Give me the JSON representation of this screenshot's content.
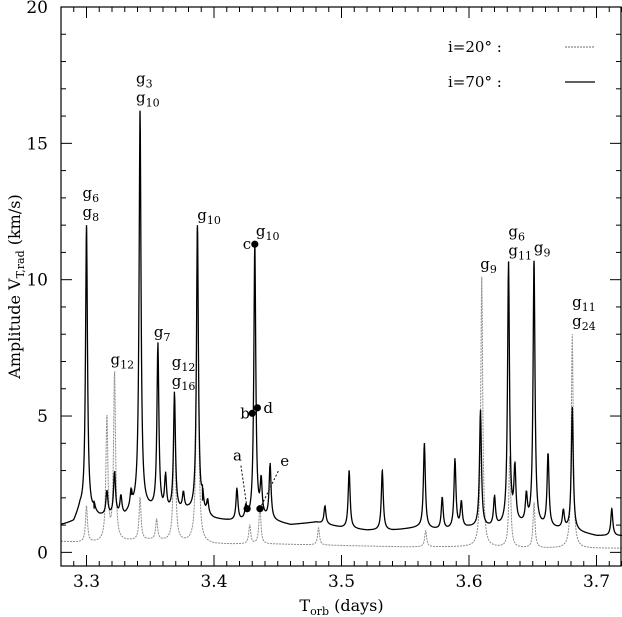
{
  "chart_data": {
    "type": "line",
    "xlabel": "T",
    "xlabel_sub": "orb",
    "xlabel_unit": " (days)",
    "ylabel": "Amplitude V",
    "ylabel_sub": "T,rad",
    "ylabel_unit": " (km/s)",
    "xlim": [
      3.28,
      3.72
    ],
    "ylim": [
      -0.5,
      20
    ],
    "x_ticks": [
      3.3,
      3.4,
      3.5,
      3.6,
      3.7
    ],
    "x_tick_labels": [
      "3.3",
      "3.4",
      "3.5",
      "3.6",
      "3.7"
    ],
    "y_ticks": [
      0,
      5,
      10,
      15,
      20
    ],
    "y_tick_labels": [
      "0",
      "5",
      "10",
      "15",
      "20"
    ],
    "legend": {
      "position": "top-right",
      "entries": [
        {
          "label": "i=20°  :",
          "style": "dotted-gray"
        },
        {
          "label": "i=70°  :",
          "style": "solid-black"
        }
      ]
    },
    "series": [
      {
        "name": "i=20°",
        "color": "#8a8a8a",
        "baseline": [
          [
            3.28,
            0.4
          ],
          [
            3.3,
            0.35
          ],
          [
            3.35,
            0.45
          ],
          [
            3.4,
            0.3
          ],
          [
            3.45,
            0.3
          ],
          [
            3.5,
            0.25
          ],
          [
            3.55,
            0.2
          ],
          [
            3.6,
            0.2
          ],
          [
            3.65,
            0.15
          ],
          [
            3.7,
            0.15
          ],
          [
            3.72,
            0.15
          ]
        ],
        "peaks": [
          {
            "x": 3.3,
            "y": 1.7
          },
          {
            "x": 3.316,
            "y": 5.0
          },
          {
            "x": 3.322,
            "y": 6.6
          },
          {
            "x": 3.342,
            "y": 2.0
          },
          {
            "x": 3.355,
            "y": 1.2
          },
          {
            "x": 3.369,
            "y": 5.8
          },
          {
            "x": 3.387,
            "y": 11.9
          },
          {
            "x": 3.428,
            "y": 1.0
          },
          {
            "x": 3.436,
            "y": 1.7
          },
          {
            "x": 3.482,
            "y": 0.9
          },
          {
            "x": 3.566,
            "y": 0.8
          },
          {
            "x": 3.61,
            "y": 10.1
          },
          {
            "x": 3.632,
            "y": 3.5
          },
          {
            "x": 3.651,
            "y": 1.8
          },
          {
            "x": 3.681,
            "y": 8.0
          }
        ]
      },
      {
        "name": "i=70°",
        "color": "#000000",
        "baseline": [
          [
            3.28,
            1.0
          ],
          [
            3.29,
            1.1
          ],
          [
            3.295,
            1.6
          ],
          [
            3.31,
            1.3
          ],
          [
            3.33,
            1.3
          ],
          [
            3.34,
            1.7
          ],
          [
            3.36,
            1.4
          ],
          [
            3.38,
            1.5
          ],
          [
            3.4,
            1.2
          ],
          [
            3.42,
            1.1
          ],
          [
            3.44,
            1.2
          ],
          [
            3.46,
            1.0
          ],
          [
            3.48,
            1.1
          ],
          [
            3.5,
            0.9
          ],
          [
            3.52,
            0.8
          ],
          [
            3.54,
            0.8
          ],
          [
            3.56,
            0.9
          ],
          [
            3.58,
            0.8
          ],
          [
            3.6,
            0.9
          ],
          [
            3.62,
            0.9
          ],
          [
            3.64,
            1.0
          ],
          [
            3.66,
            0.9
          ],
          [
            3.68,
            0.8
          ],
          [
            3.7,
            0.6
          ],
          [
            3.72,
            0.6
          ]
        ],
        "peaks": [
          {
            "x": 3.3,
            "y": 12.0
          },
          {
            "x": 3.306,
            "y": 1.6
          },
          {
            "x": 3.316,
            "y": 2.2
          },
          {
            "x": 3.322,
            "y": 2.9
          },
          {
            "x": 3.327,
            "y": 2.0
          },
          {
            "x": 3.335,
            "y": 2.1
          },
          {
            "x": 3.342,
            "y": 16.2
          },
          {
            "x": 3.356,
            "y": 7.6
          },
          {
            "x": 3.362,
            "y": 2.7
          },
          {
            "x": 3.369,
            "y": 5.8
          },
          {
            "x": 3.376,
            "y": 2.1
          },
          {
            "x": 3.387,
            "y": 12.0
          },
          {
            "x": 3.391,
            "y": 1.9
          },
          {
            "x": 3.395,
            "y": 1.8
          },
          {
            "x": 3.418,
            "y": 2.3
          },
          {
            "x": 3.425,
            "y": 1.6
          },
          {
            "x": 3.432,
            "y": 11.3
          },
          {
            "x": 3.437,
            "y": 2.5
          },
          {
            "x": 3.444,
            "y": 3.2
          },
          {
            "x": 3.487,
            "y": 1.7
          },
          {
            "x": 3.506,
            "y": 3.0
          },
          {
            "x": 3.532,
            "y": 3.0
          },
          {
            "x": 3.565,
            "y": 4.0
          },
          {
            "x": 3.579,
            "y": 2.0
          },
          {
            "x": 3.589,
            "y": 3.4
          },
          {
            "x": 3.594,
            "y": 1.8
          },
          {
            "x": 3.609,
            "y": 5.2
          },
          {
            "x": 3.62,
            "y": 2.0
          },
          {
            "x": 3.631,
            "y": 10.6
          },
          {
            "x": 3.636,
            "y": 3.0
          },
          {
            "x": 3.645,
            "y": 2.0
          },
          {
            "x": 3.651,
            "y": 10.7
          },
          {
            "x": 3.662,
            "y": 3.6
          },
          {
            "x": 3.674,
            "y": 1.5
          },
          {
            "x": 3.681,
            "y": 5.3
          },
          {
            "x": 3.712,
            "y": 1.6
          }
        ]
      }
    ],
    "peak_labels": [
      {
        "x": 3.3,
        "y": 12.0,
        "lines": [
          [
            "g",
            "6"
          ],
          [
            "g",
            "8"
          ]
        ]
      },
      {
        "x": 3.322,
        "y": 6.6,
        "lines": [
          [
            "g",
            "12"
          ]
        ]
      },
      {
        "x": 3.342,
        "y": 16.2,
        "lines": [
          [
            "g",
            "3"
          ],
          [
            "g",
            "10"
          ]
        ]
      },
      {
        "x": 3.356,
        "y": 7.6,
        "lines": [
          [
            "g",
            "7"
          ]
        ]
      },
      {
        "x": 3.37,
        "y": 5.8,
        "lines": [
          [
            "g",
            "12"
          ],
          [
            "g",
            "16"
          ]
        ]
      },
      {
        "x": 3.39,
        "y": 11.9,
        "lines": [
          [
            "g",
            "10"
          ]
        ]
      },
      {
        "x": 3.436,
        "y": 11.3,
        "lines": [
          [
            "g",
            "10"
          ]
        ]
      },
      {
        "x": 3.612,
        "y": 10.1,
        "lines": [
          [
            "g",
            "9"
          ]
        ]
      },
      {
        "x": 3.634,
        "y": 10.6,
        "lines": [
          [
            "g",
            "6"
          ],
          [
            "g",
            "11"
          ]
        ]
      },
      {
        "x": 3.654,
        "y": 10.7,
        "lines": [
          [
            "g",
            "9"
          ]
        ]
      },
      {
        "x": 3.684,
        "y": 8.0,
        "lines": [
          [
            "g",
            "11"
          ],
          [
            "g",
            "24"
          ]
        ]
      }
    ],
    "marked_points": [
      {
        "label": "c",
        "x": 3.432,
        "y": 11.3,
        "side": "left"
      },
      {
        "label": "b",
        "x": 3.43,
        "y": 5.1,
        "side": "left"
      },
      {
        "label": "d",
        "x": 3.434,
        "y": 5.3,
        "side": "right"
      },
      {
        "label": "a",
        "x": 3.426,
        "y": 1.6,
        "side": "left-far",
        "tx": 3.418,
        "ty": 3.4
      },
      {
        "label": "e",
        "x": 3.436,
        "y": 1.6,
        "side": "right-far",
        "tx": 3.452,
        "ty": 3.2
      }
    ]
  }
}
